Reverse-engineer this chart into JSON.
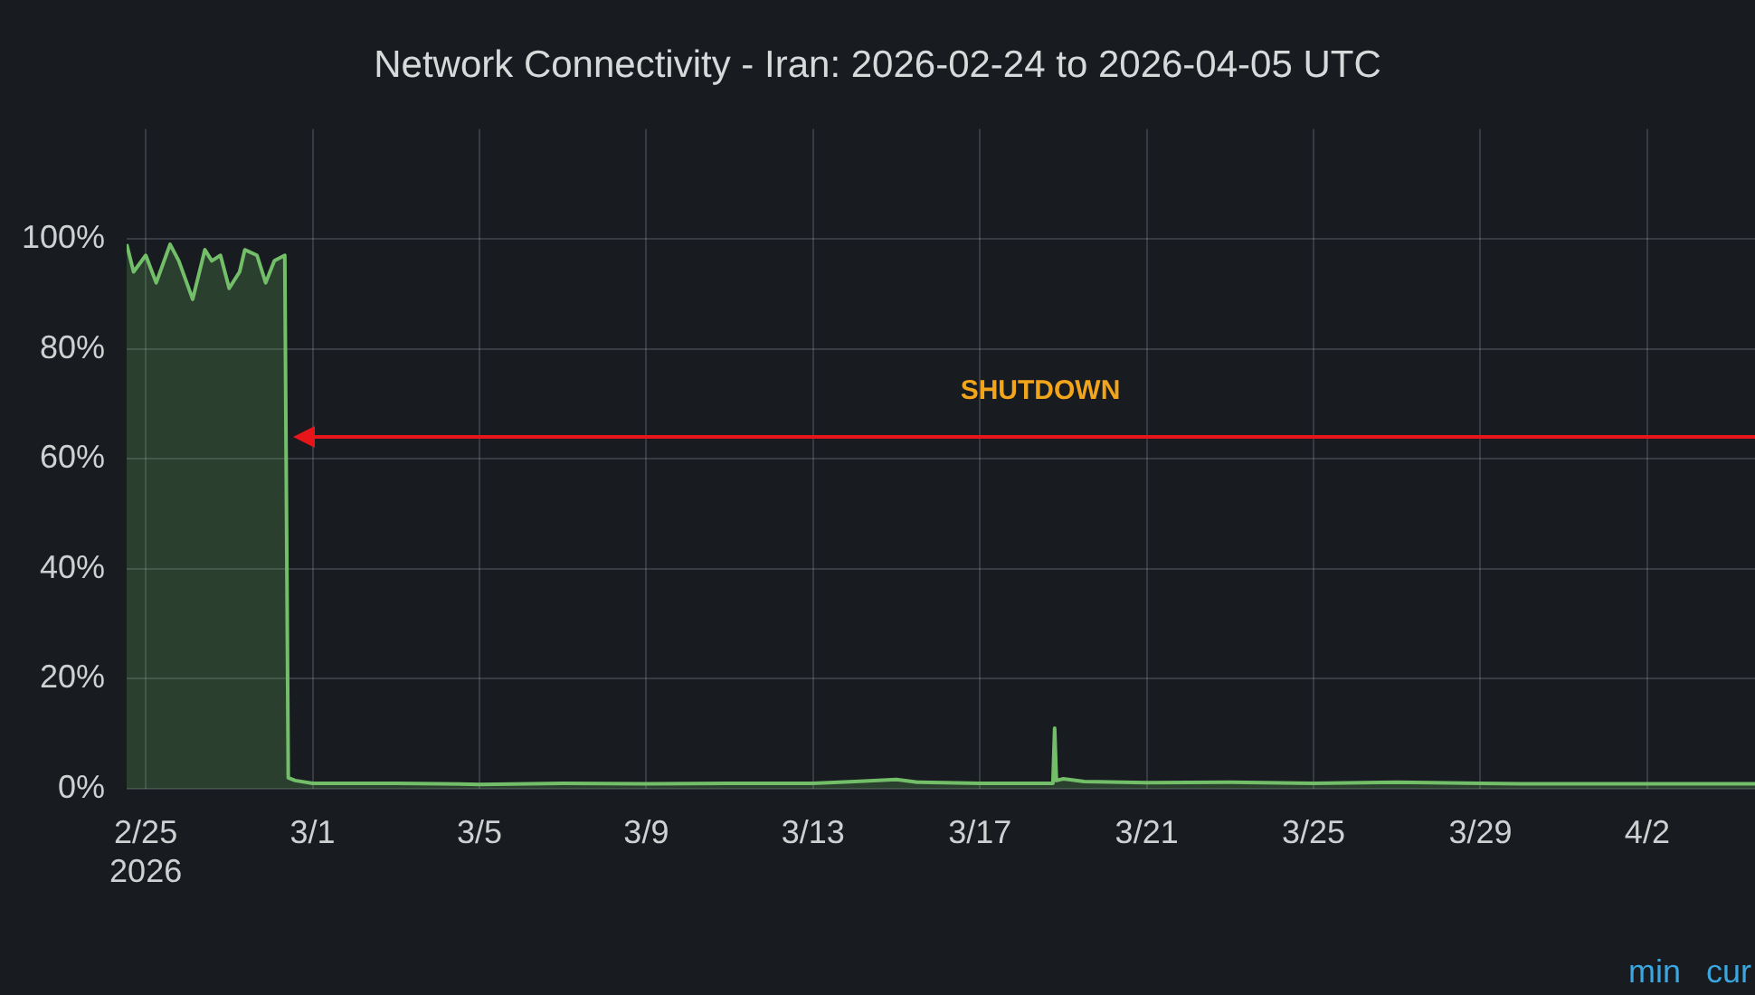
{
  "chart_data": {
    "type": "area",
    "title": "Network Connectivity - Iran: 2026-02-24 to 2026-04-05 UTC",
    "x": [
      "2026-02-24T13:00",
      "2026-02-24T17:00",
      "2026-02-25T00:00",
      "2026-02-25T06:00",
      "2026-02-25T14:00",
      "2026-02-25T19:00",
      "2026-02-26T03:00",
      "2026-02-26T10:00",
      "2026-02-26T14:00",
      "2026-02-26T19:00",
      "2026-02-27T00:00",
      "2026-02-27T06:00",
      "2026-02-27T09:00",
      "2026-02-27T16:00",
      "2026-02-27T21:00",
      "2026-02-28T02:00",
      "2026-02-28T08:00",
      "2026-02-28T10:00",
      "2026-02-28T14:00",
      "2026-03-01",
      "2026-03-03",
      "2026-03-05",
      "2026-03-07",
      "2026-03-09",
      "2026-03-11",
      "2026-03-13",
      "2026-03-14",
      "2026-03-15",
      "2026-03-15T12:00",
      "2026-03-17",
      "2026-03-18T18:00",
      "2026-03-18T19:00",
      "2026-03-18T20:00",
      "2026-03-19",
      "2026-03-19T12:00",
      "2026-03-21",
      "2026-03-23",
      "2026-03-25",
      "2026-03-27",
      "2026-03-29",
      "2026-03-30",
      "2026-04-04T14:00"
    ],
    "series": [
      {
        "color": "#73bf69",
        "values": [
          99,
          94,
          97,
          92,
          99,
          96,
          89,
          98,
          96,
          97,
          91,
          94,
          98,
          97,
          92,
          96,
          97,
          2,
          1.5,
          1,
          1,
          0.8,
          1,
          0.9,
          1,
          1,
          1.3,
          1.7,
          1.2,
          1,
          1,
          11,
          1.5,
          1.8,
          1.3,
          1.1,
          1.2,
          1,
          1.2,
          1,
          0.9,
          0.9
        ]
      }
    ],
    "xlim": [
      "2026-02-24T13:00",
      "2026-04-04T14:00"
    ],
    "xticks": [
      {
        "value": "2026-02-25",
        "label": "2/25\n2026"
      },
      {
        "value": "2026-03-01",
        "label": "3/1"
      },
      {
        "value": "2026-03-05",
        "label": "3/5"
      },
      {
        "value": "2026-03-09",
        "label": "3/9"
      },
      {
        "value": "2026-03-13",
        "label": "3/13"
      },
      {
        "value": "2026-03-17",
        "label": "3/17"
      },
      {
        "value": "2026-03-21",
        "label": "3/21"
      },
      {
        "value": "2026-03-25",
        "label": "3/25"
      },
      {
        "value": "2026-03-29",
        "label": "3/29"
      },
      {
        "value": "2026-04-02",
        "label": "4/2"
      }
    ],
    "ylim": [
      0,
      120
    ],
    "yticks": [
      {
        "value": 0,
        "label": "0%"
      },
      {
        "value": 20,
        "label": "20%"
      },
      {
        "value": 40,
        "label": "40%"
      },
      {
        "value": 60,
        "label": "60%"
      },
      {
        "value": 80,
        "label": "80%"
      },
      {
        "value": 100,
        "label": "100%"
      }
    ],
    "ref_lines": [
      {
        "axis": "y",
        "value": 64,
        "label": "SHUTDOWN",
        "color": "#e8161b"
      }
    ],
    "annotations": [
      "min",
      "cur"
    ],
    "grid": true,
    "legend": false,
    "marker": "none",
    "line_style": "solid"
  }
}
